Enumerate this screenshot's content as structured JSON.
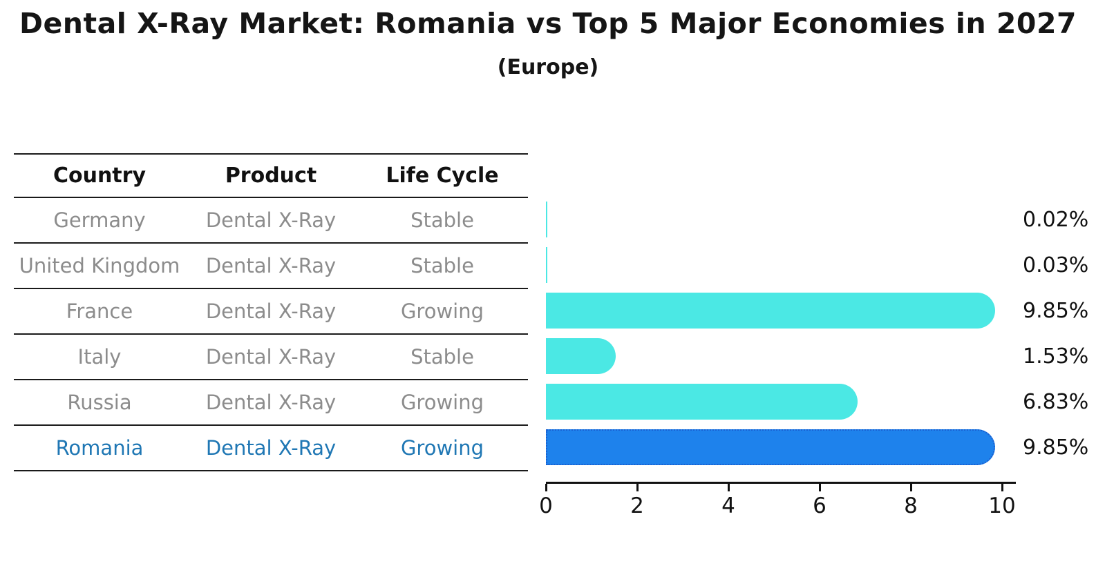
{
  "title": "Dental X-Ray Market: Romania vs Top 5 Major Economies in 2027",
  "subtitle": "(Europe)",
  "table": {
    "headers": [
      "Country",
      "Product",
      "Life Cycle"
    ],
    "rows": [
      {
        "country": "Germany",
        "product": "Dental X-Ray",
        "life_cycle": "Stable",
        "highlighted": false
      },
      {
        "country": "United Kingdom",
        "product": "Dental X-Ray",
        "life_cycle": "Stable",
        "highlighted": false
      },
      {
        "country": "France",
        "product": "Dental X-Ray",
        "life_cycle": "Growing",
        "highlighted": false
      },
      {
        "country": "Italy",
        "product": "Dental X-Ray",
        "life_cycle": "Stable",
        "highlighted": false
      },
      {
        "country": "Russia",
        "product": "Dental X-Ray",
        "life_cycle": "Growing",
        "highlighted": false
      },
      {
        "country": "Romania",
        "product": "Dental X-Ray",
        "life_cycle": "Growing",
        "highlighted": true
      }
    ]
  },
  "chart_data": {
    "type": "bar",
    "orientation": "horizontal",
    "title": "Dental X-Ray Market: Romania vs Top 5 Major Economies in 2027",
    "subtitle": "(Europe)",
    "categories": [
      "Germany",
      "United Kingdom",
      "France",
      "Italy",
      "Russia",
      "Romania"
    ],
    "values": [
      0.02,
      0.03,
      9.85,
      1.53,
      6.83,
      9.85
    ],
    "value_labels": [
      "0.02%",
      "0.03%",
      "9.85%",
      "1.53%",
      "6.83%",
      "9.85%"
    ],
    "x_ticks": [
      0,
      2,
      4,
      6,
      8,
      10
    ],
    "xlim": [
      0,
      10.3
    ],
    "grid": false,
    "legend": "none",
    "bar_color": "#4be8e4",
    "highlight_index": 5,
    "highlight_bar_color": "#1e82ec",
    "highlight_border_color": "#1a5fd0",
    "highlight_text_color": "#1f77b4"
  }
}
